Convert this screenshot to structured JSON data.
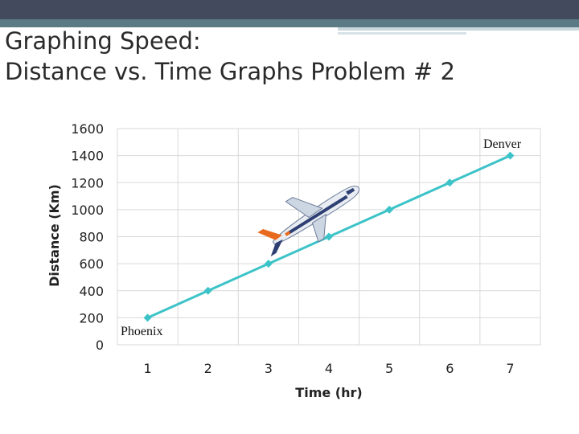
{
  "slide": {
    "title_line1": "Graphing Speed:",
    "title_line2": "Distance vs. Time Graphs Problem # 2"
  },
  "colors": {
    "line": "#3cc3c8",
    "header_dark": "#444a5e",
    "header_teal": "#5b7a86"
  },
  "icons": {
    "plane": "airplane-icon"
  },
  "chart_data": {
    "type": "line",
    "x": [
      1,
      2,
      3,
      4,
      5,
      6,
      7
    ],
    "series": [
      {
        "values": [
          200,
          400,
          600,
          800,
          1000,
          1200,
          1400
        ]
      }
    ],
    "xticks": [
      "1",
      "2",
      "3",
      "4",
      "5",
      "6",
      "7"
    ],
    "yticks": [
      0,
      200,
      400,
      600,
      800,
      1000,
      1200,
      1400,
      1600
    ],
    "xlabel": "Time (hr)",
    "ylabel": "Distance (Km)",
    "ylim": [
      0,
      1600
    ],
    "xlim": [
      0.5,
      7.5
    ],
    "grid": true,
    "annotations": [
      {
        "text": "Phoenix",
        "x": 1,
        "y": 200
      },
      {
        "text": "Denver",
        "x": 7,
        "y": 1400
      }
    ]
  }
}
